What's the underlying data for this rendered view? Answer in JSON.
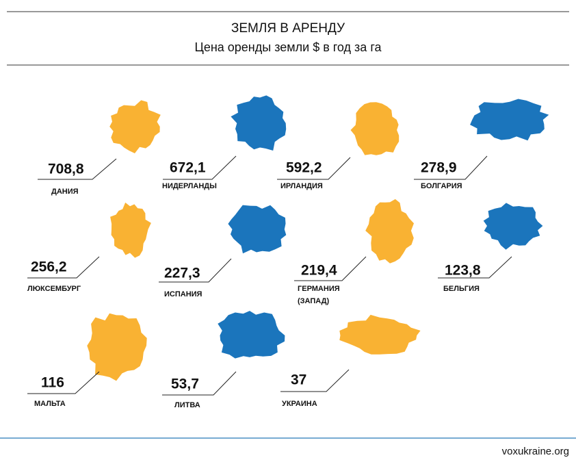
{
  "header": {
    "title": "ЗЕМЛЯ В АРЕНДУ",
    "subtitle": "Цена оренды земли $ в год за га"
  },
  "items": [
    {
      "value": "708,8",
      "name": "ДАНИЯ",
      "color": "#f9b233"
    },
    {
      "value": "672,1",
      "name": "НИДЕРЛАНДЫ",
      "color": "#1b75bc"
    },
    {
      "value": "592,2",
      "name": "ИРЛАНДИЯ",
      "color": "#f9b233"
    },
    {
      "value": "278,9",
      "name": "БОЛГАРИЯ",
      "color": "#1b75bc"
    },
    {
      "value": "256,2",
      "name": "ЛЮКСЕМБУРГ",
      "color": "#f9b233"
    },
    {
      "value": "227,3",
      "name": "ИСПАНИЯ",
      "color": "#1b75bc"
    },
    {
      "value": "219,4",
      "name": "ГЕРМАНИЯ",
      "name_2": "(ЗАПАД)",
      "color": "#f9b233"
    },
    {
      "value": "123,8",
      "name": "БЕЛЬГИЯ",
      "color": "#1b75bc"
    },
    {
      "value": "116",
      "name": "МАЛЬТА",
      "color": "#f9b233"
    },
    {
      "value": "53,7",
      "name": "ЛИТВА",
      "color": "#1b75bc"
    },
    {
      "value": "37",
      "name": "УКРАИНА",
      "color": "#f9b233"
    }
  ],
  "footer": {
    "source": "voxukraine.org"
  }
}
